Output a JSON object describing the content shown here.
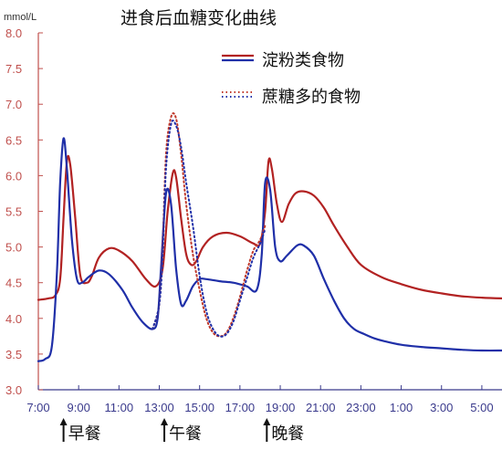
{
  "chart_data": {
    "type": "line",
    "title": "进食后血糖变化曲线",
    "ylabel": "mmol/L",
    "xlabel": "",
    "ylim": [
      3.0,
      8.0
    ],
    "yticks": [
      "3.0",
      "3.5",
      "4.0",
      "4.5",
      "5.0",
      "5.5",
      "6.0",
      "6.5",
      "7.0",
      "7.5",
      "8.0"
    ],
    "xlim": [
      "07:00",
      "06:00 (+1 day)"
    ],
    "xticks": [
      "7:00",
      "9:00",
      "11:00",
      "13:00",
      "15:00",
      "17:00",
      "19:00",
      "21:00",
      "23:00",
      "1:00",
      "3:00",
      "5:00"
    ],
    "grid": false,
    "legend_position": "top-right",
    "series": [
      {
        "name": "淀粉类食物",
        "color": "#b22222",
        "line_style": "solid",
        "x": [
          "07:00",
          "07:30",
          "07:50",
          "08:05",
          "08:15",
          "08:25",
          "08:35",
          "08:50",
          "09:05",
          "09:25",
          "09:40",
          "10:00",
          "10:30",
          "11:00",
          "11:40",
          "12:20",
          "12:50",
          "13:10",
          "13:25",
          "13:40",
          "13:50",
          "14:05",
          "14:20",
          "14:35",
          "14:50",
          "15:10",
          "15:40",
          "16:20",
          "17:00",
          "17:40",
          "18:00",
          "18:15",
          "18:25",
          "18:35",
          "18:50",
          "19:05",
          "19:25",
          "19:45",
          "20:10",
          "20:40",
          "21:10",
          "21:40",
          "22:20",
          "23:00",
          "00:00",
          "01:00",
          "02:00",
          "03:00",
          "04:00",
          "05:00",
          "06:00"
        ],
        "values": [
          4.26,
          4.28,
          4.32,
          4.55,
          5.4,
          6.2,
          6.15,
          5.4,
          4.6,
          4.5,
          4.6,
          4.85,
          4.98,
          4.95,
          4.8,
          4.55,
          4.45,
          4.7,
          5.5,
          6.03,
          5.98,
          5.4,
          4.9,
          4.75,
          4.8,
          5.0,
          5.15,
          5.2,
          5.15,
          5.05,
          5.05,
          5.5,
          6.2,
          6.1,
          5.6,
          5.35,
          5.6,
          5.75,
          5.78,
          5.72,
          5.55,
          5.3,
          5.0,
          4.75,
          4.58,
          4.48,
          4.4,
          4.35,
          4.31,
          4.29,
          4.28
        ]
      },
      {
        "name": "淀粉类食物",
        "color": "#1f2fa8",
        "line_style": "solid",
        "x": [
          "07:00",
          "07:20",
          "07:40",
          "07:55",
          "08:05",
          "08:15",
          "08:25",
          "08:40",
          "08:55",
          "09:10",
          "09:30",
          "10:00",
          "10:30",
          "11:10",
          "11:40",
          "12:10",
          "12:40",
          "12:55",
          "13:05",
          "13:20",
          "13:35",
          "13:50",
          "14:05",
          "14:20",
          "14:40",
          "15:00",
          "15:20",
          "16:00",
          "16:40",
          "17:20",
          "17:50",
          "18:05",
          "18:15",
          "18:30",
          "18:45",
          "19:00",
          "19:20",
          "19:50",
          "20:10",
          "20:40",
          "21:10",
          "21:40",
          "22:10",
          "22:40",
          "23:10",
          "23:40",
          "00:10",
          "01:00",
          "02:00",
          "03:00",
          "04:00",
          "05:00",
          "06:00"
        ],
        "values": [
          3.4,
          3.43,
          3.6,
          4.6,
          5.9,
          6.52,
          6.1,
          5.1,
          4.55,
          4.5,
          4.58,
          4.67,
          4.62,
          4.4,
          4.15,
          3.95,
          3.85,
          4.0,
          4.7,
          5.75,
          5.6,
          4.7,
          4.2,
          4.25,
          4.45,
          4.55,
          4.55,
          4.52,
          4.5,
          4.45,
          4.4,
          4.9,
          5.9,
          5.8,
          5.0,
          4.8,
          4.88,
          5.02,
          5.02,
          4.88,
          4.55,
          4.25,
          4.0,
          3.85,
          3.78,
          3.72,
          3.68,
          3.63,
          3.6,
          3.58,
          3.56,
          3.55,
          3.55
        ]
      },
      {
        "name": "蔗糖多的食物",
        "color": "#c0392b",
        "line_style": "dotted",
        "x": [
          "12:40",
          "13:00",
          "13:10",
          "13:20",
          "13:35",
          "13:50",
          "14:05",
          "14:20",
          "14:40",
          "15:00",
          "15:20",
          "15:40",
          "16:00",
          "16:20",
          "16:40",
          "17:00",
          "17:20",
          "17:40",
          "18:00",
          "18:15"
        ],
        "values": [
          3.85,
          4.2,
          5.0,
          6.3,
          6.82,
          6.8,
          6.3,
          5.6,
          4.9,
          4.4,
          4.0,
          3.8,
          3.75,
          3.8,
          4.0,
          4.3,
          4.65,
          4.95,
          5.1,
          5.3
        ]
      },
      {
        "name": "蔗糖多的食物",
        "color": "#1f2fa8",
        "line_style": "dotted",
        "x": [
          "12:40",
          "13:00",
          "13:10",
          "13:20",
          "13:35",
          "13:50",
          "14:05",
          "14:20",
          "14:40",
          "15:00",
          "15:20",
          "15:40",
          "16:00",
          "16:20",
          "16:40",
          "17:00",
          "17:20",
          "17:40",
          "18:00",
          "18:15"
        ],
        "values": [
          3.85,
          4.2,
          4.9,
          6.1,
          6.72,
          6.7,
          6.4,
          5.9,
          5.3,
          4.6,
          4.1,
          3.85,
          3.75,
          3.78,
          3.95,
          4.25,
          4.55,
          4.85,
          5.05,
          5.25
        ]
      }
    ],
    "legend": [
      {
        "name": "淀粉类食物",
        "style": "solid",
        "colors": [
          "#b22222",
          "#1f2fa8"
        ]
      },
      {
        "name": "蔗糖多的食物",
        "style": "dotted",
        "colors": [
          "#c0392b",
          "#1f2fa8"
        ]
      }
    ],
    "annotations": [
      {
        "text": "早餐",
        "arrow": "up",
        "at": "08:15"
      },
      {
        "text": "午餐",
        "arrow": "up",
        "at": "13:15"
      },
      {
        "text": "晚餐",
        "arrow": "up",
        "at": "18:20"
      }
    ]
  }
}
